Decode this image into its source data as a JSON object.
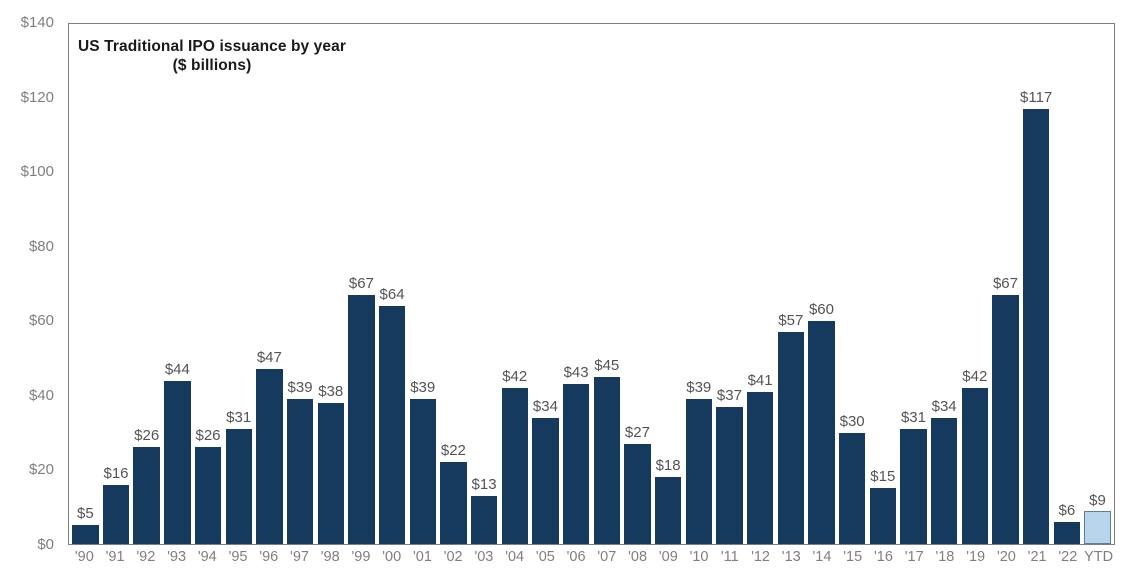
{
  "chart_data": {
    "type": "bar",
    "title": "US Traditional IPO issuance by year",
    "subtitle": "($ billions)",
    "categories": [
      "'90",
      "'91",
      "'92",
      "'93",
      "'94",
      "'95",
      "'96",
      "'97",
      "'98",
      "'99",
      "'00",
      "'01",
      "'02",
      "'03",
      "'04",
      "'05",
      "'06",
      "'07",
      "'08",
      "'09",
      "'10",
      "'11",
      "'12",
      "'13",
      "'14",
      "'15",
      "'16",
      "'17",
      "'18",
      "'19",
      "'20",
      "'21",
      "'22",
      "YTD"
    ],
    "values": [
      5,
      16,
      26,
      44,
      26,
      31,
      47,
      39,
      38,
      67,
      64,
      39,
      22,
      13,
      42,
      34,
      43,
      45,
      27,
      18,
      39,
      37,
      41,
      57,
      60,
      30,
      15,
      31,
      34,
      42,
      67,
      117,
      6,
      9
    ],
    "bar_labels": [
      "$5",
      "$16",
      "$26",
      "$44",
      "$26",
      "$31",
      "$47",
      "$39",
      "$38",
      "$67",
      "$64",
      "$39",
      "$22",
      "$13",
      "$42",
      "$34",
      "$43",
      "$45",
      "$27",
      "$18",
      "$39",
      "$37",
      "$41",
      "$57",
      "$60",
      "$30",
      "$15",
      "$31",
      "$34",
      "$42",
      "$67",
      "$117",
      "$6",
      "$9"
    ],
    "y_ticks": [
      "$0",
      "$20",
      "$40",
      "$60",
      "$80",
      "$100",
      "$120",
      "$140"
    ],
    "y_tick_values": [
      0,
      20,
      40,
      60,
      80,
      100,
      120,
      140
    ],
    "ylim": [
      0,
      140
    ],
    "xlabel": "",
    "ylabel": "",
    "grid": false,
    "legend_position": "none",
    "highlight_index": 33,
    "colors": {
      "bar": "#16395e",
      "ytd_fill": "#b8d5ec",
      "ytd_border": "#5d7d9d",
      "bar_label": "#545454",
      "axis_tick_label": "#7f7f7f",
      "plot_border": "#7f7f7f",
      "title": "#1a1a1a",
      "background": "#ffffff"
    }
  }
}
